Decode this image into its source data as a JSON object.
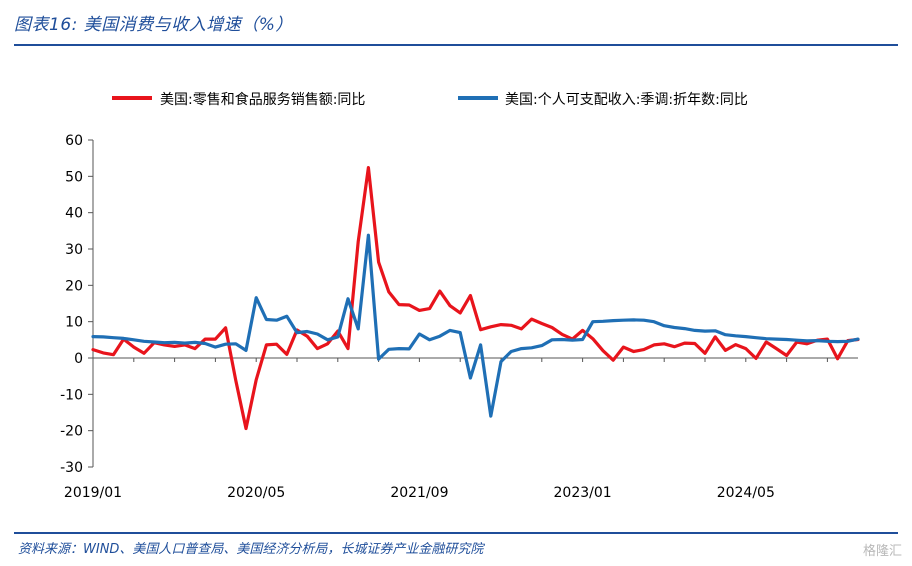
{
  "header": {
    "title": "图表16:  美国消费与收入增速（%）"
  },
  "footer": {
    "source": "资料来源：WIND、美国人口普查局、美国经济分析局，长城证券产业金融研究院",
    "watermark": "格隆汇"
  },
  "colors": {
    "retail": "#e8141c",
    "income": "#1f6fb5",
    "accent": "#1f4e9a"
  },
  "chart_data": {
    "type": "line",
    "title": "",
    "xlabel": "",
    "ylabel": "",
    "ylim": [
      -30,
      60
    ],
    "yticks": [
      60,
      50,
      40,
      30,
      20,
      10,
      0,
      -10,
      -20,
      -30
    ],
    "x_tick_labels": [
      "2019/01",
      "2020/05",
      "2021/09",
      "2023/01",
      "2024/05"
    ],
    "x_tick_index": [
      0,
      16,
      32,
      48,
      64
    ],
    "legend_position": "top",
    "series": [
      {
        "name": "美国:零售和食品服务销售额:同比",
        "color": "#e8141c",
        "values": [
          2.3,
          1.4,
          0.9,
          5.2,
          3.0,
          1.3,
          4.2,
          3.6,
          3.2,
          3.6,
          2.6,
          5.2,
          5.2,
          8.3,
          -6.2,
          -19.4,
          -6.0,
          3.6,
          3.8,
          1.0,
          7.7,
          6.0,
          2.6,
          3.9,
          7.4,
          2.6,
          32.0,
          52.4,
          26.4,
          18.2,
          14.7,
          14.6,
          13.1,
          13.6,
          18.4,
          14.4,
          12.4,
          17.2,
          7.8,
          8.6,
          9.2,
          9.0,
          8.0,
          10.7,
          9.5,
          8.4,
          6.5,
          5.2,
          7.6,
          5.3,
          2.0,
          -0.6,
          3.0,
          1.8,
          2.3,
          3.6,
          3.9,
          3.1,
          4.1,
          4.0,
          1.3,
          5.8,
          2.1,
          3.7,
          2.6,
          -0.1,
          4.4,
          2.6,
          0.7,
          4.4,
          3.9,
          4.9,
          5.2,
          -0.2,
          4.8,
          5.1
        ]
      },
      {
        "name": "美国:个人可支配收入:季调:折年数:同比",
        "color": "#1f6fb5",
        "values": [
          5.9,
          5.8,
          5.6,
          5.4,
          5.0,
          4.6,
          4.4,
          4.2,
          4.3,
          4.1,
          4.3,
          4.0,
          3.0,
          3.8,
          3.9,
          2.1,
          16.6,
          10.6,
          10.4,
          11.5,
          7.0,
          7.3,
          6.6,
          5.0,
          5.8,
          16.3,
          8.0,
          33.8,
          -0.3,
          2.4,
          2.6,
          2.5,
          6.6,
          5.0,
          6.0,
          7.6,
          7.0,
          -5.5,
          3.6,
          -16.0,
          -1.0,
          1.8,
          2.6,
          2.8,
          3.4,
          5.0,
          5.1,
          4.9,
          5.1,
          10.0,
          10.1,
          10.3,
          10.4,
          10.5,
          10.4,
          10.0,
          8.9,
          8.4,
          8.1,
          7.6,
          7.4,
          7.5,
          6.4,
          6.1,
          5.9,
          5.6,
          5.3,
          5.2,
          5.1,
          4.9,
          4.7,
          4.8,
          4.6,
          4.5,
          4.6,
          5.2
        ]
      }
    ]
  }
}
